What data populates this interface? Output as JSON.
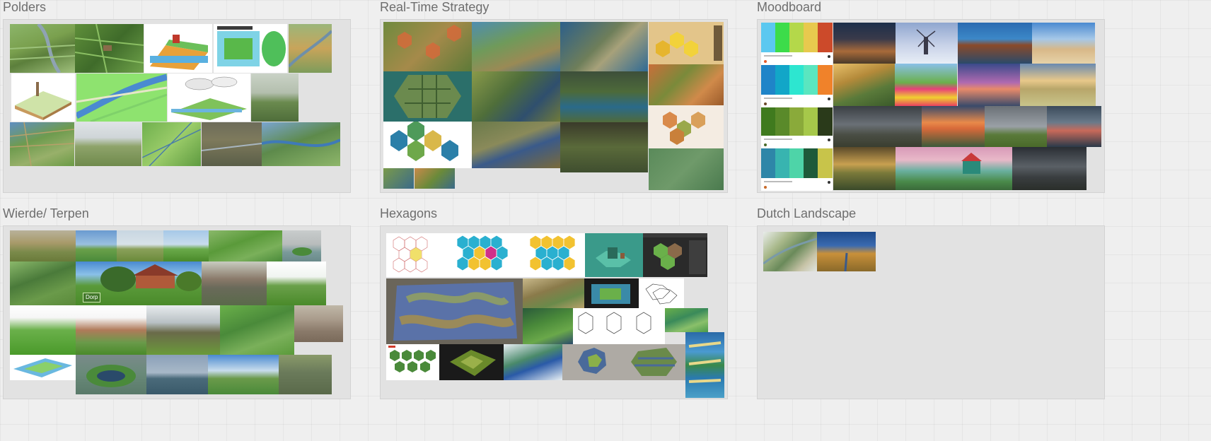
{
  "boards": {
    "polders": {
      "title": "Polders"
    },
    "rts": {
      "title": "Real-Time Strategy"
    },
    "moodboard": {
      "title": "Moodboard"
    },
    "wierde": {
      "title": "Wierde/ Terpen"
    },
    "hexagons": {
      "title": "Hexagons"
    },
    "dutch": {
      "title": "Dutch Landscape"
    }
  },
  "tiles": {
    "wierde_village_sign": "Dorp"
  }
}
